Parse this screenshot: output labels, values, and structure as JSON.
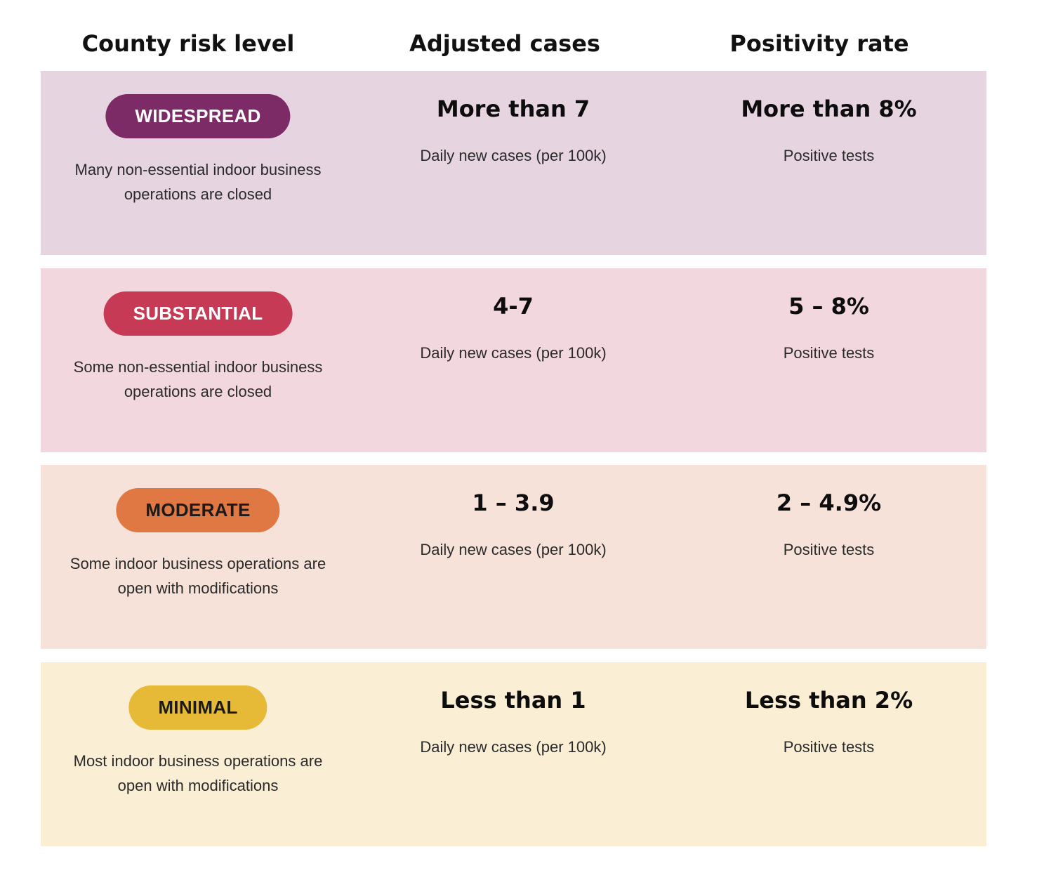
{
  "headers": {
    "risk": "County risk level",
    "cases": "Adjusted cases",
    "positivity": "Positivity rate"
  },
  "rows": [
    {
      "level": "WIDESPREAD",
      "description_line1": "Many non-essential indoor business",
      "description_line2": "operations are closed",
      "cases": "More than 7",
      "cases_caption": "Daily new cases (per 100k)",
      "positivity": "More than 8%",
      "positivity_caption": "Positive tests",
      "row_bg": "#e6d4e1",
      "badge_bg": "#7d2b66",
      "badge_text": "#ffffff"
    },
    {
      "level": "SUBSTANTIAL",
      "description_line1": "Some non-essential indoor business",
      "description_line2": "operations are closed",
      "cases": "4-7",
      "cases_caption": "Daily new cases (per 100k)",
      "positivity": "5 – 8%",
      "positivity_caption": "Positive tests",
      "row_bg": "#f2d8de",
      "badge_bg": "#c73a55",
      "badge_text": "#ffffff"
    },
    {
      "level": "MODERATE",
      "description_line1": "Some indoor business operations are",
      "description_line2": "open with modifications",
      "cases": "1 – 3.9",
      "cases_caption": "Daily new cases (per 100k)",
      "positivity": "2 – 4.9%",
      "positivity_caption": "Positive tests",
      "row_bg": "#f6e2d8",
      "badge_bg": "#e07843",
      "badge_text": "#1a1a1a"
    },
    {
      "level": "MINIMAL",
      "description_line1": "Most indoor business operations are",
      "description_line2": "open with modifications",
      "cases": "Less than 1",
      "cases_caption": "Daily new cases (per 100k)",
      "positivity": "Less than 2%",
      "positivity_caption": "Positive tests",
      "row_bg": "#faefd5",
      "badge_bg": "#e6b937",
      "badge_text": "#1a1a1a"
    }
  ]
}
